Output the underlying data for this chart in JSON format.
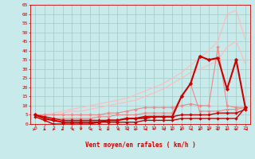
{
  "bg_color": "#c8eaea",
  "grid_color": "#a0c8c8",
  "text_color": "#cc0000",
  "xlabel": "Vent moyen/en rafales ( km/h )",
  "xlim": [
    -0.5,
    23.5
  ],
  "ylim": [
    0,
    65
  ],
  "yticks": [
    0,
    5,
    10,
    15,
    20,
    25,
    30,
    35,
    40,
    45,
    50,
    55,
    60,
    65
  ],
  "xticks": [
    0,
    1,
    2,
    3,
    4,
    5,
    6,
    7,
    8,
    9,
    10,
    11,
    12,
    13,
    14,
    15,
    16,
    17,
    18,
    19,
    20,
    21,
    22,
    23
  ],
  "x": [
    0,
    1,
    2,
    3,
    4,
    5,
    6,
    7,
    8,
    9,
    10,
    11,
    12,
    13,
    14,
    15,
    16,
    17,
    18,
    19,
    20,
    21,
    22,
    23
  ],
  "lines": [
    {
      "y": [
        5,
        5,
        6,
        7,
        8,
        9,
        10,
        11,
        12,
        13,
        14,
        16,
        18,
        20,
        22,
        25,
        28,
        32,
        36,
        40,
        45,
        60,
        62,
        46
      ],
      "color": "#ffbbbb",
      "lw": 0.8,
      "marker": null,
      "ms": 0,
      "alpha": 1.0
    },
    {
      "y": [
        5,
        5,
        5,
        6,
        7,
        7,
        8,
        9,
        10,
        11,
        12,
        13,
        15,
        17,
        19,
        22,
        25,
        28,
        30,
        32,
        35,
        42,
        45,
        33
      ],
      "color": "#ffbbbb",
      "lw": 0.8,
      "marker": null,
      "ms": 0,
      "alpha": 1.0
    },
    {
      "y": [
        5,
        5,
        5,
        5,
        5,
        5,
        5,
        5,
        6,
        6,
        7,
        8,
        9,
        9,
        9,
        9,
        10,
        11,
        10,
        10,
        42,
        10,
        9,
        9
      ],
      "color": "#ee8888",
      "lw": 0.8,
      "marker": "D",
      "ms": 2,
      "alpha": 1.0
    },
    {
      "y": [
        5,
        4,
        3,
        3,
        3,
        3,
        3,
        4,
        4,
        5,
        5,
        5,
        6,
        6,
        6,
        6,
        15,
        22,
        7,
        7,
        7,
        8,
        8,
        9
      ],
      "color": "#ee8888",
      "lw": 0.8,
      "marker": "D",
      "ms": 2,
      "alpha": 1.0
    },
    {
      "y": [
        5,
        3,
        2,
        1,
        1,
        1,
        1,
        1,
        2,
        2,
        3,
        3,
        4,
        4,
        4,
        4,
        15,
        22,
        37,
        35,
        36,
        19,
        35,
        9
      ],
      "color": "#cc0000",
      "lw": 1.5,
      "marker": "D",
      "ms": 2.5,
      "alpha": 1.0
    },
    {
      "y": [
        5,
        4,
        3,
        2,
        2,
        2,
        2,
        2,
        2,
        2,
        3,
        3,
        3,
        4,
        4,
        4,
        5,
        5,
        5,
        5,
        6,
        6,
        6,
        8
      ],
      "color": "#cc0000",
      "lw": 1.0,
      "marker": "D",
      "ms": 2,
      "alpha": 1.0
    },
    {
      "y": [
        4,
        2,
        0,
        0,
        0,
        0,
        0,
        1,
        1,
        1,
        1,
        1,
        2,
        2,
        2,
        2,
        3,
        3,
        3,
        3,
        3,
        3,
        3,
        9
      ],
      "color": "#cc0000",
      "lw": 1.0,
      "marker": "D",
      "ms": 2,
      "alpha": 1.0
    }
  ],
  "arrows": {
    "x": [
      0,
      1,
      2,
      3,
      4,
      5,
      6,
      7,
      8,
      9,
      10,
      11,
      12,
      13,
      14,
      15,
      16,
      17,
      18,
      19,
      20,
      21,
      22,
      23
    ],
    "angles_deg": [
      90,
      135,
      200,
      225,
      270,
      180,
      270,
      270,
      225,
      270,
      270,
      225,
      270,
      180,
      270,
      225,
      225,
      270,
      225,
      225,
      225,
      225,
      225,
      270
    ]
  }
}
